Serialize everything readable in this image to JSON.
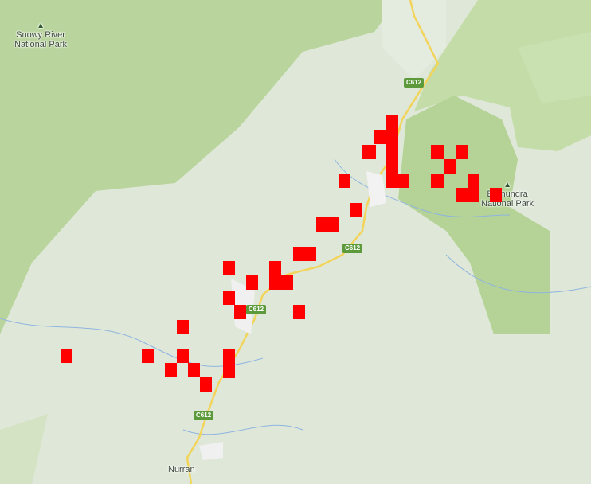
{
  "map": {
    "parks": [
      {
        "name": "Snowy River National Park",
        "line1": "Snowy River",
        "line2": "National Park",
        "icon": "tree-icon"
      },
      {
        "name": "Errinundra National Park",
        "line1": "Errinundra",
        "line2": "National Park",
        "icon": "tree-icon"
      }
    ],
    "towns": [
      {
        "name": "Nurran"
      }
    ],
    "roads": [
      {
        "label": "C612"
      },
      {
        "label": "C612"
      },
      {
        "label": "C612"
      },
      {
        "label": "C612"
      }
    ]
  },
  "overlay": {
    "color": "#ff0000"
  },
  "colors": {
    "park": "#b7d59a",
    "valley": "#dfe8d8",
    "road": "#f7e07a",
    "river": "#8fb4e0"
  }
}
